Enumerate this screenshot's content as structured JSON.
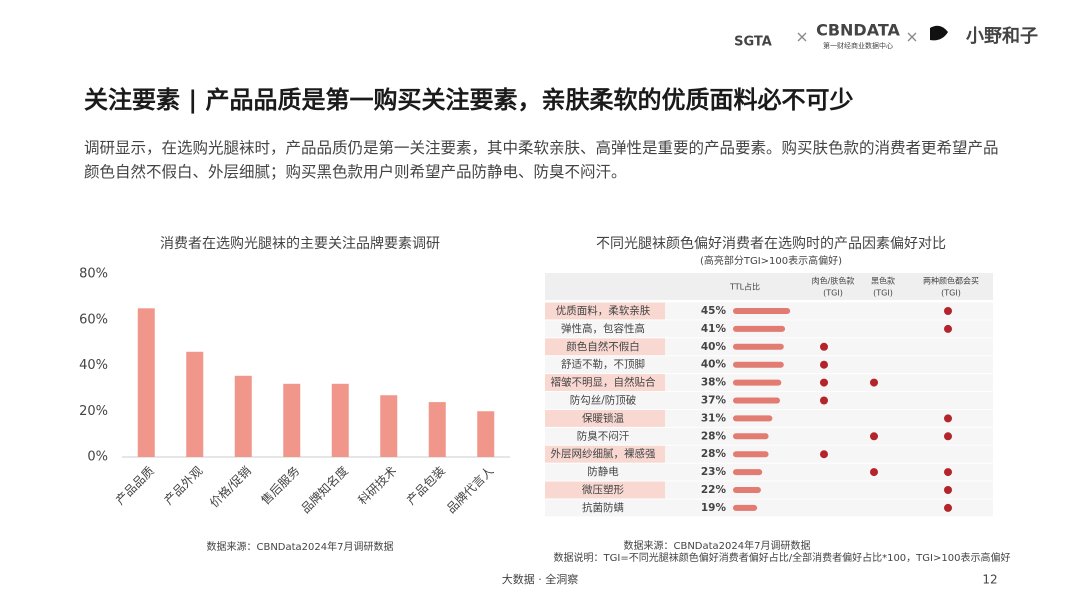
{
  "header": {
    "logos": [
      "SGTA",
      "CBNDATA",
      "第一财经商业数据中心",
      "小野和子"
    ]
  },
  "title": "关注要素 | 产品品质是第一购买关注要素，亲肤柔软的优质面料必不可少",
  "intro": "调研显示，在选购光腿袜时，产品品质仍是第一关注要素，其中柔软亲肤、高弹性是重要的产品要素。购买肤色款的消费者更希望产品颜色自然不假白、外层细腻；购买黑色款用户则希望产品防静电、防臭不闷汗。",
  "chart_data": {
    "type": "bar",
    "title": "消费者在选购光腿袜的主要关注品牌要素调研",
    "categories": [
      "产品品质",
      "产品外观",
      "价格/促销",
      "售后服务",
      "品牌知名度",
      "科研技术",
      "产品包装",
      "品牌代言人"
    ],
    "values": [
      65,
      46,
      35.5,
      32,
      32,
      27,
      24,
      20
    ],
    "color": "#f0968a",
    "ylim": [
      0,
      80
    ],
    "yticks": [
      {
        "value": 0,
        "label": "0%"
      },
      {
        "value": 20,
        "label": "20%"
      },
      {
        "value": 40,
        "label": "40%"
      },
      {
        "value": 60,
        "label": "60%"
      },
      {
        "value": 80,
        "label": "80%"
      }
    ],
    "grid": false,
    "source": "数据来源：CBNData2024年7月调研数据"
  },
  "table": {
    "title": "不同光腿袜颜色偏好消费者在选购时的产品因素偏好对比",
    "subtitle": "(高亮部分TGI>100表示高偏好)",
    "columns": [
      "TTL占比",
      [
        "肉色/肤色款",
        "(TGI)"
      ],
      [
        "黑色款",
        "(TGI)"
      ],
      [
        "两种颜色都会买",
        "(TGI)"
      ]
    ],
    "rows": [
      {
        "name": "优质面料，柔软亲肤",
        "ttl": 45,
        "ttl_label": "45%",
        "high_tgi": [
          false,
          false,
          true
        ]
      },
      {
        "name": "弹性高，包容性高",
        "ttl": 41,
        "ttl_label": "41%",
        "high_tgi": [
          false,
          false,
          true
        ]
      },
      {
        "name": "颜色自然不假白",
        "ttl": 40,
        "ttl_label": "40%",
        "high_tgi": [
          true,
          false,
          false
        ]
      },
      {
        "name": "舒适不勒，不顶脚",
        "ttl": 40,
        "ttl_label": "40%",
        "high_tgi": [
          true,
          false,
          false
        ]
      },
      {
        "name": "褶皱不明显，自然贴合",
        "ttl": 38,
        "ttl_label": "38%",
        "high_tgi": [
          true,
          true,
          false
        ]
      },
      {
        "name": "防勾丝/防顶破",
        "ttl": 37,
        "ttl_label": "37%",
        "high_tgi": [
          true,
          false,
          false
        ]
      },
      {
        "name": "保暖锁温",
        "ttl": 31,
        "ttl_label": "31%",
        "high_tgi": [
          false,
          false,
          true
        ]
      },
      {
        "name": "防臭不闷汗",
        "ttl": 28,
        "ttl_label": "28%",
        "high_tgi": [
          false,
          true,
          true
        ]
      },
      {
        "name": "外层网纱细腻，裸感强",
        "ttl": 28,
        "ttl_label": "28%",
        "high_tgi": [
          true,
          false,
          false
        ]
      },
      {
        "name": "防静电",
        "ttl": 23,
        "ttl_label": "23%",
        "high_tgi": [
          false,
          true,
          true
        ]
      },
      {
        "name": "微压塑形",
        "ttl": 22,
        "ttl_label": "22%",
        "high_tgi": [
          false,
          false,
          true
        ]
      },
      {
        "name": "抗菌防螨",
        "ttl": 19,
        "ttl_label": "19%",
        "high_tgi": [
          false,
          false,
          true
        ]
      }
    ],
    "bar_color": "#e27b72",
    "dot_color": "#b3242b",
    "source": "数据来源：CBNData2024年7月调研数据",
    "note": "数据说明：TGI=不同光腿袜颜色偏好消费者偏好占比/全部消费者偏好占比*100，TGI>100表示高偏好"
  },
  "footer": {
    "text": "大数据 · 全洞察",
    "page": "12"
  }
}
